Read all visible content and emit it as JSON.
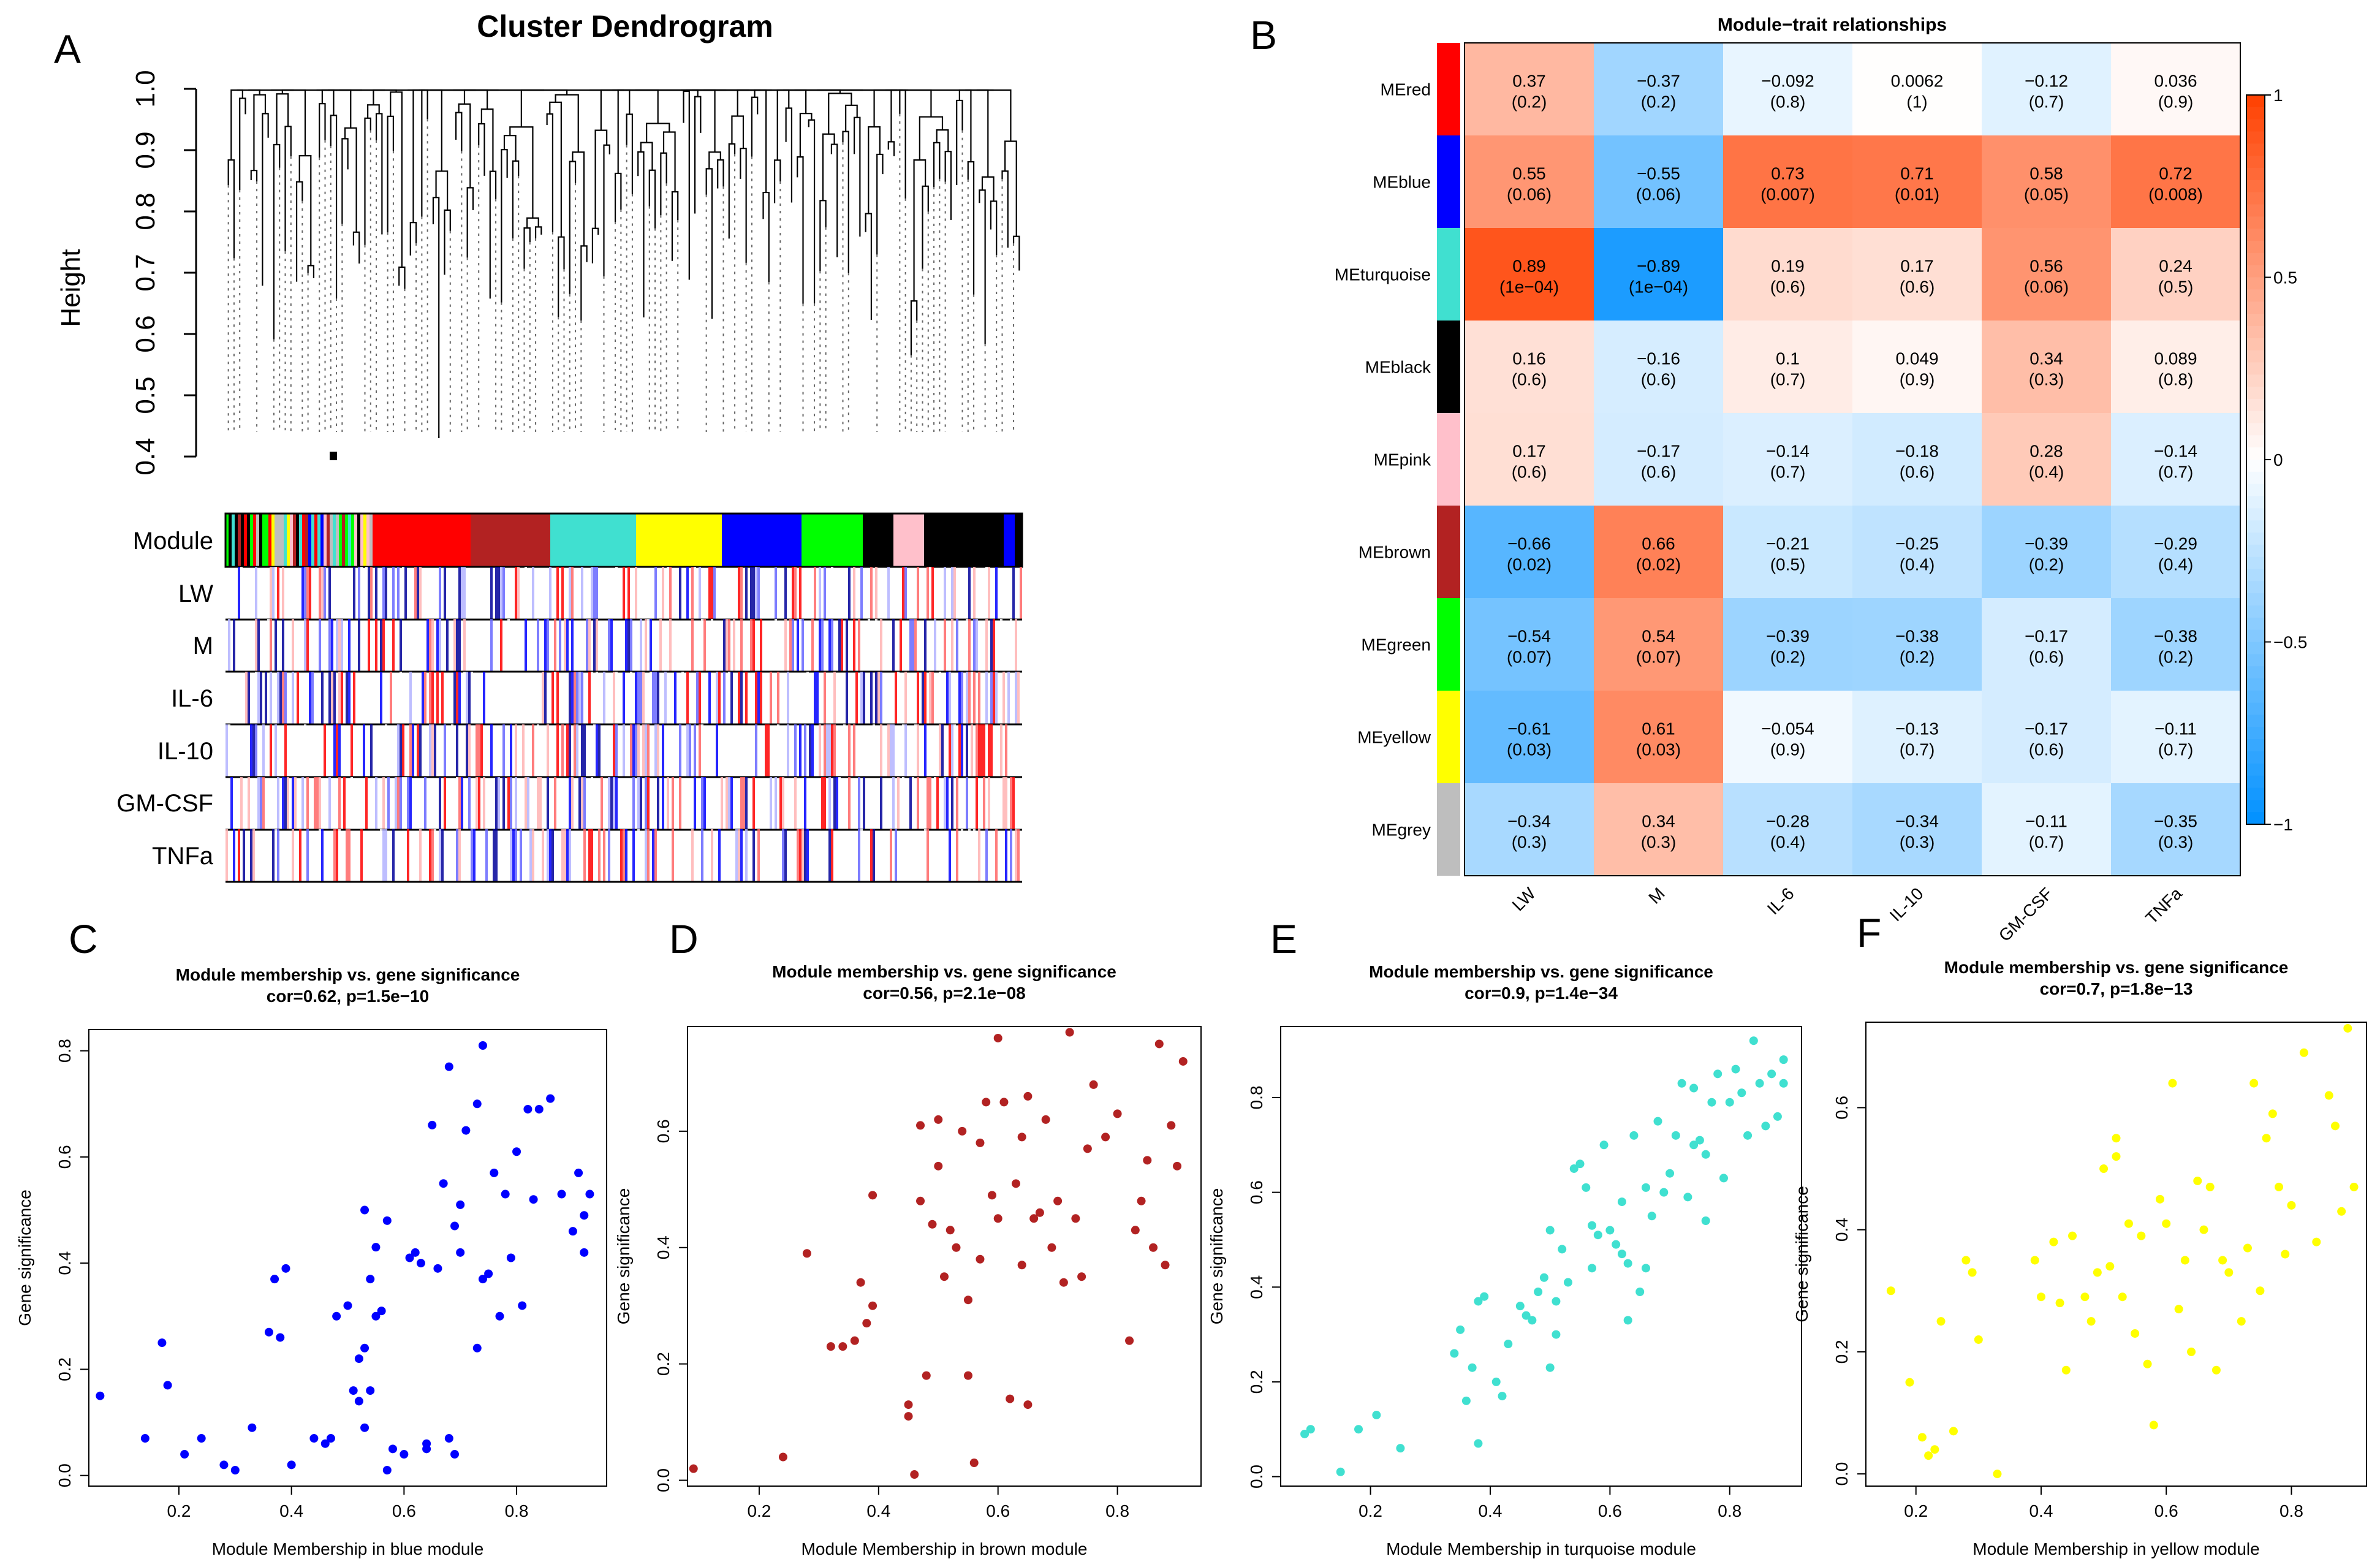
{
  "panel_letters": {
    "a": "A",
    "b": "B",
    "c": "C",
    "d": "D",
    "e": "E",
    "f": "F"
  },
  "dendrogram": {
    "title": "Cluster Dendrogram",
    "ylabel": "Height",
    "yticks": [
      "0.4",
      "0.5",
      "0.6",
      "0.7",
      "0.8",
      "0.9",
      "1.0"
    ],
    "row_labels": [
      "Module",
      "LW",
      "M",
      "IL-6",
      "IL-10",
      "GM-CSF",
      "TNFa"
    ],
    "module_segments": [
      {
        "color": "#ff0000",
        "frac": 0.16
      },
      {
        "color": "#b22222",
        "frac": 0.13
      },
      {
        "color": "#40e0d0",
        "frac": 0.14
      },
      {
        "color": "#ffff00",
        "frac": 0.14
      },
      {
        "color": "#0000ff",
        "frac": 0.13
      },
      {
        "color": "#00ff00",
        "frac": 0.1
      },
      {
        "color": "#000000",
        "frac": 0.05
      },
      {
        "color": "#ffc0cb",
        "frac": 0.05
      }
    ]
  },
  "heatmap": {
    "title": "Module−trait relationships",
    "modules": [
      "MEred",
      "MEblue",
      "MEturquoise",
      "MEblack",
      "MEpink",
      "MEbrown",
      "MEgreen",
      "MEyellow",
      "MEgrey"
    ],
    "module_colors": [
      "#ff0000",
      "#0000ff",
      "#40e0d0",
      "#000000",
      "#ffc0cb",
      "#b22222",
      "#00ff00",
      "#ffff00",
      "#bebebe"
    ],
    "traits": [
      "LW",
      "M",
      "IL-6",
      "IL-10",
      "GM-CSF",
      "TNFa"
    ],
    "colorbar_ticks": [
      "1",
      "0.5",
      "0",
      "−0.5",
      "−1"
    ],
    "cor_labels": [
      [
        "0.37",
        "−0.37",
        "−0.092",
        "0.0062",
        "−0.12",
        "0.036"
      ],
      [
        "0.55",
        "−0.55",
        "0.73",
        "0.71",
        "0.58",
        "0.72"
      ],
      [
        "0.89",
        "−0.89",
        "0.19",
        "0.17",
        "0.56",
        "0.24"
      ],
      [
        "0.16",
        "−0.16",
        "0.1",
        "0.049",
        "0.34",
        "0.089"
      ],
      [
        "0.17",
        "−0.17",
        "−0.14",
        "−0.18",
        "0.28",
        "−0.14"
      ],
      [
        "−0.66",
        "0.66",
        "−0.21",
        "−0.25",
        "−0.39",
        "−0.29"
      ],
      [
        "−0.54",
        "0.54",
        "−0.39",
        "−0.38",
        "−0.17",
        "−0.38"
      ],
      [
        "−0.61",
        "0.61",
        "−0.054",
        "−0.13",
        "−0.17",
        "−0.11"
      ],
      [
        "−0.34",
        "0.34",
        "−0.28",
        "−0.34",
        "−0.11",
        "−0.35"
      ]
    ],
    "p_labels": [
      [
        "(0.2)",
        "(0.2)",
        "(0.8)",
        "(1)",
        "(0.7)",
        "(0.9)"
      ],
      [
        "(0.06)",
        "(0.06)",
        "(0.007)",
        "(0.01)",
        "(0.05)",
        "(0.008)"
      ],
      [
        "(1e−04)",
        "(1e−04)",
        "(0.6)",
        "(0.6)",
        "(0.06)",
        "(0.5)"
      ],
      [
        "(0.6)",
        "(0.6)",
        "(0.7)",
        "(0.9)",
        "(0.3)",
        "(0.8)"
      ],
      [
        "(0.6)",
        "(0.6)",
        "(0.7)",
        "(0.6)",
        "(0.4)",
        "(0.7)"
      ],
      [
        "(0.02)",
        "(0.02)",
        "(0.5)",
        "(0.4)",
        "(0.2)",
        "(0.4)"
      ],
      [
        "(0.07)",
        "(0.07)",
        "(0.2)",
        "(0.2)",
        "(0.6)",
        "(0.2)"
      ],
      [
        "(0.03)",
        "(0.03)",
        "(0.9)",
        "(0.7)",
        "(0.6)",
        "(0.7)"
      ],
      [
        "(0.3)",
        "(0.3)",
        "(0.4)",
        "(0.3)",
        "(0.7)",
        "(0.3)"
      ]
    ]
  },
  "chart_data": [
    {
      "type": "heatmap",
      "title": "Module−trait relationships",
      "rows": [
        "MEred",
        "MEblue",
        "MEturquoise",
        "MEblack",
        "MEpink",
        "MEbrown",
        "MEgreen",
        "MEyellow",
        "MEgrey"
      ],
      "columns": [
        "LW",
        "M",
        "IL-6",
        "IL-10",
        "GM-CSF",
        "TNFa"
      ],
      "values": [
        [
          0.37,
          -0.37,
          -0.092,
          0.0062,
          -0.12,
          0.036
        ],
        [
          0.55,
          -0.55,
          0.73,
          0.71,
          0.58,
          0.72
        ],
        [
          0.89,
          -0.89,
          0.19,
          0.17,
          0.56,
          0.24
        ],
        [
          0.16,
          -0.16,
          0.1,
          0.049,
          0.34,
          0.089
        ],
        [
          0.17,
          -0.17,
          -0.14,
          -0.18,
          0.28,
          -0.14
        ],
        [
          -0.66,
          0.66,
          -0.21,
          -0.25,
          -0.39,
          -0.29
        ],
        [
          -0.54,
          0.54,
          -0.39,
          -0.38,
          -0.17,
          -0.38
        ],
        [
          -0.61,
          0.61,
          -0.054,
          -0.13,
          -0.17,
          -0.11
        ],
        [
          -0.34,
          0.34,
          -0.28,
          -0.34,
          -0.11,
          -0.35
        ]
      ],
      "colorbar_range": [
        -1,
        1
      ]
    },
    {
      "type": "scatter",
      "title": "Module membership vs. gene significance",
      "subtitle": "cor=0.62, p=1.5e−10",
      "xlabel": "Module Membership in blue module",
      "ylabel": "Gene significance",
      "color": "#0000ff",
      "xlim": [
        0.04,
        0.96
      ],
      "ylim": [
        -0.02,
        0.84
      ],
      "xticks": [
        0.2,
        0.4,
        0.6,
        0.8
      ],
      "yticks": [
        0.0,
        0.2,
        0.4,
        0.6,
        0.8
      ],
      "x": [
        0.06,
        0.14,
        0.17,
        0.18,
        0.21,
        0.24,
        0.28,
        0.3,
        0.33,
        0.36,
        0.37,
        0.38,
        0.39,
        0.4,
        0.44,
        0.46,
        0.47,
        0.48,
        0.5,
        0.51,
        0.52,
        0.52,
        0.53,
        0.53,
        0.53,
        0.54,
        0.54,
        0.55,
        0.55,
        0.56,
        0.57,
        0.57,
        0.58,
        0.6,
        0.61,
        0.62,
        0.63,
        0.64,
        0.64,
        0.65,
        0.66,
        0.67,
        0.68,
        0.68,
        0.69,
        0.69,
        0.7,
        0.7,
        0.71,
        0.73,
        0.73,
        0.74,
        0.74,
        0.75,
        0.76,
        0.77,
        0.78,
        0.79,
        0.8,
        0.81,
        0.82,
        0.83,
        0.84,
        0.86,
        0.88,
        0.9,
        0.91,
        0.92,
        0.92,
        0.93
      ],
      "y": [
        0.15,
        0.07,
        0.25,
        0.17,
        0.04,
        0.07,
        0.02,
        0.01,
        0.09,
        0.27,
        0.37,
        0.26,
        0.39,
        0.02,
        0.07,
        0.06,
        0.07,
        0.3,
        0.32,
        0.16,
        0.22,
        0.14,
        0.5,
        0.24,
        0.09,
        0.37,
        0.16,
        0.43,
        0.3,
        0.31,
        0.01,
        0.48,
        0.05,
        0.04,
        0.41,
        0.42,
        0.4,
        0.06,
        0.05,
        0.66,
        0.39,
        0.55,
        0.77,
        0.07,
        0.04,
        0.47,
        0.51,
        0.42,
        0.65,
        0.7,
        0.24,
        0.81,
        0.37,
        0.38,
        0.57,
        0.3,
        0.53,
        0.41,
        0.61,
        0.32,
        0.69,
        0.52,
        0.69,
        0.71,
        0.53,
        0.46,
        0.57,
        0.42,
        0.49,
        0.53
      ]
    },
    {
      "type": "scatter",
      "title": "Module membership vs. gene significance",
      "subtitle": "cor=0.56, p=2.1e−08",
      "xlabel": "Module Membership in brown module",
      "ylabel": "Gene significance",
      "color": "#b22222",
      "xlim": [
        0.08,
        0.94
      ],
      "ylim": [
        -0.01,
        0.78
      ],
      "xticks": [
        0.2,
        0.4,
        0.6,
        0.8
      ],
      "yticks": [
        0.0,
        0.2,
        0.4,
        0.6
      ],
      "x": [
        0.09,
        0.24,
        0.28,
        0.32,
        0.34,
        0.36,
        0.37,
        0.38,
        0.39,
        0.39,
        0.45,
        0.45,
        0.46,
        0.47,
        0.47,
        0.48,
        0.49,
        0.5,
        0.5,
        0.51,
        0.52,
        0.53,
        0.54,
        0.55,
        0.55,
        0.56,
        0.57,
        0.57,
        0.58,
        0.59,
        0.6,
        0.6,
        0.61,
        0.62,
        0.63,
        0.64,
        0.64,
        0.65,
        0.65,
        0.66,
        0.67,
        0.68,
        0.69,
        0.7,
        0.71,
        0.72,
        0.73,
        0.74,
        0.75,
        0.76,
        0.78,
        0.8,
        0.82,
        0.83,
        0.84,
        0.85,
        0.86,
        0.87,
        0.88,
        0.89,
        0.9,
        0.91
      ],
      "y": [
        0.02,
        0.04,
        0.39,
        0.23,
        0.23,
        0.24,
        0.34,
        0.27,
        0.3,
        0.49,
        0.11,
        0.13,
        0.01,
        0.48,
        0.61,
        0.18,
        0.44,
        0.62,
        0.54,
        0.35,
        0.43,
        0.4,
        0.6,
        0.18,
        0.31,
        0.03,
        0.38,
        0.58,
        0.65,
        0.49,
        0.76,
        0.45,
        0.65,
        0.14,
        0.51,
        0.59,
        0.37,
        0.66,
        0.13,
        0.45,
        0.46,
        0.62,
        0.4,
        0.48,
        0.34,
        0.77,
        0.45,
        0.35,
        0.57,
        0.68,
        0.59,
        0.63,
        0.24,
        0.43,
        0.48,
        0.55,
        0.4,
        0.75,
        0.37,
        0.61,
        0.54,
        0.72
      ]
    },
    {
      "type": "scatter",
      "title": "Module membership vs. gene significance",
      "subtitle": "cor=0.9, p=1.4e−34",
      "xlabel": "Module Membership in turquoise module",
      "ylabel": "Gene significance",
      "color": "#40e0d0",
      "xlim": [
        0.05,
        0.92
      ],
      "ylim": [
        -0.02,
        0.95
      ],
      "xticks": [
        0.2,
        0.4,
        0.6,
        0.8
      ],
      "yticks": [
        0.0,
        0.2,
        0.4,
        0.6,
        0.8
      ],
      "x": [
        0.09,
        0.1,
        0.15,
        0.18,
        0.21,
        0.25,
        0.34,
        0.35,
        0.36,
        0.37,
        0.38,
        0.38,
        0.39,
        0.41,
        0.42,
        0.43,
        0.45,
        0.46,
        0.47,
        0.48,
        0.49,
        0.5,
        0.5,
        0.51,
        0.51,
        0.52,
        0.53,
        0.54,
        0.55,
        0.56,
        0.57,
        0.57,
        0.58,
        0.59,
        0.6,
        0.61,
        0.62,
        0.62,
        0.63,
        0.63,
        0.64,
        0.65,
        0.66,
        0.66,
        0.67,
        0.68,
        0.69,
        0.7,
        0.71,
        0.72,
        0.73,
        0.74,
        0.74,
        0.75,
        0.76,
        0.76,
        0.77,
        0.78,
        0.79,
        0.8,
        0.81,
        0.82,
        0.83,
        0.84,
        0.85,
        0.86,
        0.87,
        0.88,
        0.89,
        0.89
      ],
      "y": [
        0.09,
        0.1,
        0.01,
        0.1,
        0.13,
        0.06,
        0.26,
        0.31,
        0.16,
        0.23,
        0.37,
        0.07,
        0.38,
        0.2,
        0.17,
        0.28,
        0.36,
        0.34,
        0.33,
        0.39,
        0.42,
        0.52,
        0.23,
        0.37,
        0.3,
        0.48,
        0.41,
        0.65,
        0.66,
        0.61,
        0.53,
        0.44,
        0.51,
        0.7,
        0.52,
        0.49,
        0.47,
        0.58,
        0.33,
        0.45,
        0.72,
        0.39,
        0.61,
        0.44,
        0.55,
        0.75,
        0.6,
        0.64,
        0.72,
        0.83,
        0.59,
        0.82,
        0.7,
        0.71,
        0.68,
        0.54,
        0.79,
        0.85,
        0.63,
        0.79,
        0.86,
        0.81,
        0.72,
        0.92,
        0.83,
        0.74,
        0.85,
        0.76,
        0.83,
        0.88
      ]
    },
    {
      "type": "scatter",
      "title": "Module membership vs. gene significance",
      "subtitle": "cor=0.7, p=1.8e−13",
      "xlabel": "Module Membership in yellow module",
      "ylabel": "Gene significance",
      "color": "#ffff00",
      "xlim": [
        0.12,
        0.92
      ],
      "ylim": [
        -0.02,
        0.74
      ],
      "xticks": [
        0.2,
        0.4,
        0.6,
        0.8
      ],
      "yticks": [
        0.0,
        0.2,
        0.4,
        0.6
      ],
      "x": [
        0.16,
        0.19,
        0.21,
        0.22,
        0.23,
        0.24,
        0.26,
        0.28,
        0.29,
        0.3,
        0.33,
        0.39,
        0.4,
        0.42,
        0.43,
        0.44,
        0.45,
        0.47,
        0.48,
        0.49,
        0.5,
        0.51,
        0.52,
        0.52,
        0.53,
        0.54,
        0.55,
        0.56,
        0.57,
        0.58,
        0.59,
        0.6,
        0.61,
        0.62,
        0.63,
        0.64,
        0.65,
        0.66,
        0.67,
        0.68,
        0.69,
        0.7,
        0.72,
        0.73,
        0.74,
        0.75,
        0.76,
        0.77,
        0.78,
        0.79,
        0.8,
        0.82,
        0.84,
        0.86,
        0.87,
        0.88,
        0.89,
        0.9
      ],
      "y": [
        0.3,
        0.15,
        0.06,
        0.03,
        0.04,
        0.25,
        0.07,
        0.35,
        0.33,
        0.22,
        0.0,
        0.35,
        0.29,
        0.38,
        0.28,
        0.17,
        0.39,
        0.29,
        0.25,
        0.33,
        0.5,
        0.34,
        0.55,
        0.52,
        0.29,
        0.41,
        0.23,
        0.39,
        0.18,
        0.08,
        0.45,
        0.41,
        0.64,
        0.27,
        0.35,
        0.2,
        0.48,
        0.4,
        0.47,
        0.17,
        0.35,
        0.33,
        0.25,
        0.37,
        0.64,
        0.3,
        0.55,
        0.59,
        0.47,
        0.36,
        0.44,
        0.69,
        0.38,
        0.62,
        0.57,
        0.43,
        0.73,
        0.47
      ]
    }
  ]
}
